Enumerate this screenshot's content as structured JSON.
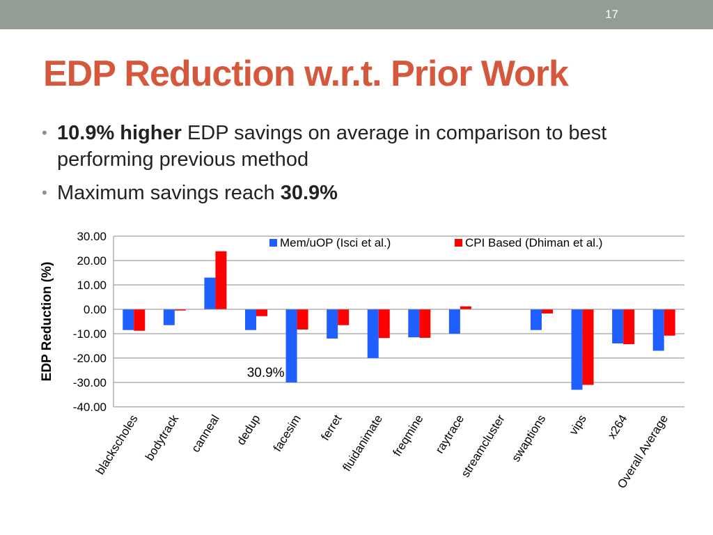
{
  "slide": {
    "number": "17",
    "title": "EDP Reduction w.r.t. Prior Work",
    "bullets": [
      {
        "bold": "10.9% higher",
        "text": " EDP savings on average in comparison to best performing previous method"
      },
      {
        "text": "Maximum savings reach ",
        "bold": "30.9%"
      }
    ]
  },
  "chart_data": {
    "type": "bar",
    "ylabel": "EDP Reduction (%)",
    "ylim": [
      -40,
      30
    ],
    "yticks": [
      "30.00",
      "20.00",
      "10.00",
      "0.00",
      "-10.00",
      "-20.00",
      "-30.00",
      "-40.00"
    ],
    "grid": true,
    "legend_position": "top-right",
    "categories": [
      "blackscholes",
      "bodytrack",
      "canneal",
      "dedup",
      "facesim",
      "ferret",
      "fluidanimate",
      "freqmine",
      "raytrace",
      "streamcluster",
      "swaptions",
      "vips",
      "x264",
      "Overall Average"
    ],
    "series": [
      {
        "name": "Mem/uOP (Isci et al.)",
        "color": "#1f5eff",
        "values": [
          -8.5,
          -6.5,
          13.0,
          -8.5,
          -30.0,
          -12.0,
          -20.0,
          -11.5,
          -10.0,
          0.0,
          -8.5,
          -33.0,
          -14.0,
          -17.0
        ]
      },
      {
        "name": "CPI Based (Dhiman et al.)",
        "color": "#ff0000",
        "values": [
          -8.8,
          -0.5,
          23.8,
          -2.8,
          -8.3,
          -6.5,
          -11.8,
          -11.7,
          1.2,
          0.0,
          -1.7,
          -31.0,
          -14.3,
          -10.8
        ]
      }
    ],
    "annotations": [
      {
        "text": "30.9%",
        "category": "facesim"
      }
    ]
  }
}
